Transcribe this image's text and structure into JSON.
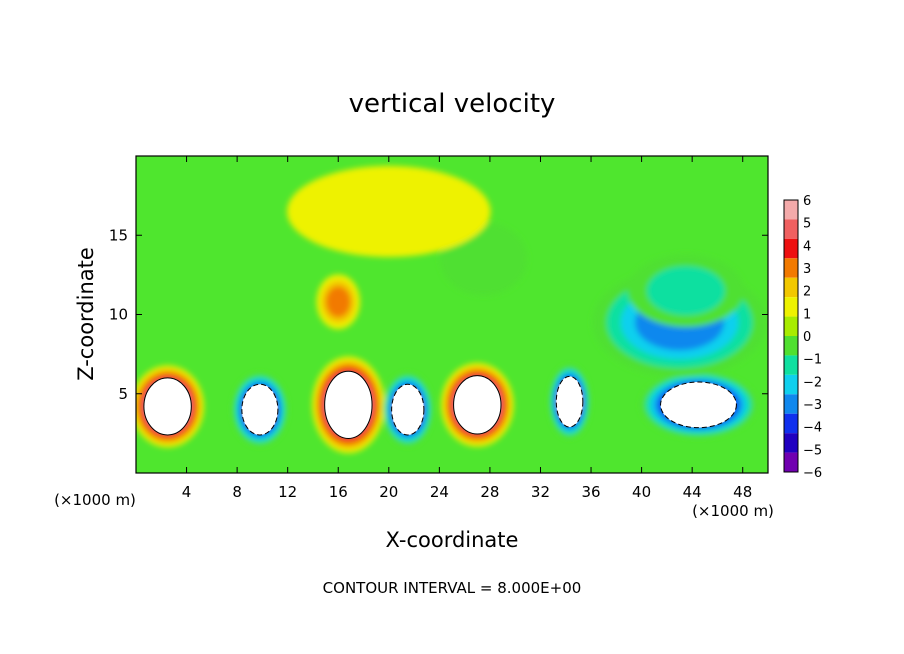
{
  "chart_data": {
    "type": "heatmap",
    "title": "vertical velocity",
    "xlabel": "X-coordinate",
    "ylabel": "Z-coordinate",
    "x_unit": "(×1000 m)",
    "y_unit": "(×1000 m)",
    "footer": "CONTOUR INTERVAL = 8.000E+00",
    "xlim": [
      0,
      50
    ],
    "ylim": [
      0,
      20
    ],
    "x_ticks": [
      4,
      8,
      12,
      16,
      20,
      24,
      28,
      32,
      36,
      40,
      44,
      48
    ],
    "y_ticks": [
      5,
      10,
      15
    ],
    "colorbar": {
      "labels": [
        "6",
        "5",
        "4",
        "3",
        "2",
        "1",
        "0",
        "−1",
        "−2",
        "−3",
        "−4",
        "−5",
        "−6"
      ],
      "colors": [
        "#f4aaaa",
        "#f06060",
        "#ee1010",
        "#f27a00",
        "#f2c800",
        "#eef200",
        "#a8ec00",
        "#50e030",
        "#10e0a0",
        "#10d0ee",
        "#1088ee",
        "#1030ee",
        "#2000c0",
        "#7000b0"
      ]
    },
    "cells": [
      {
        "x": 2.5,
        "z": 4.2,
        "w": 5,
        "h": 4.5,
        "v": 20
      },
      {
        "x": 16.8,
        "z": 4.3,
        "w": 5,
        "h": 5.3,
        "v": 20
      },
      {
        "x": 27.0,
        "z": 4.3,
        "w": 5,
        "h": 4.6,
        "v": 20
      },
      {
        "x": 9.8,
        "z": 4.0,
        "w": 3.8,
        "h": 4.0,
        "v": -18
      },
      {
        "x": 21.5,
        "z": 4.0,
        "w": 3.4,
        "h": 4.0,
        "v": -18
      },
      {
        "x": 34.3,
        "z": 4.5,
        "w": 2.8,
        "h": 4.0,
        "v": -14
      },
      {
        "x": 44.5,
        "z": 4.3,
        "w": 8.0,
        "h": 3.6,
        "v": -16
      },
      {
        "x": 43.0,
        "z": 9.5,
        "w": 12.0,
        "h": 6.0,
        "v": -3.5
      },
      {
        "x": 43.5,
        "z": 11.5,
        "w": 8.0,
        "h": 4.0,
        "v": -2
      },
      {
        "x": 16.0,
        "z": 10.8,
        "w": 3.0,
        "h": 3.0,
        "v": 3
      },
      {
        "x": 27.5,
        "z": 13.5,
        "w": 6.0,
        "h": 4.0,
        "v": -1.3
      },
      {
        "x": 20.0,
        "z": 16.5,
        "w": 14.0,
        "h": 5.0,
        "v": 1.2
      }
    ]
  }
}
